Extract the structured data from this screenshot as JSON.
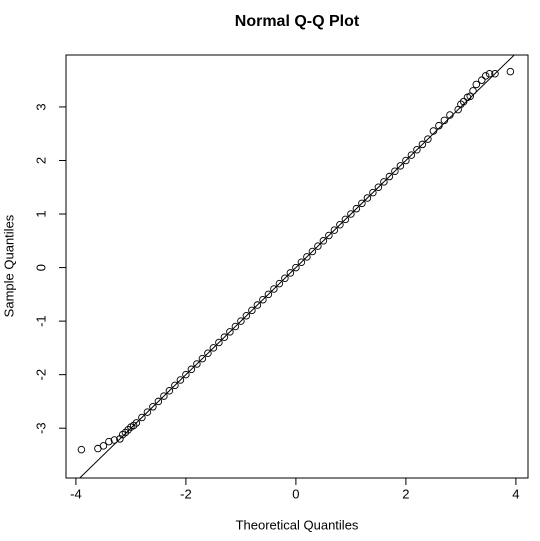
{
  "chart_data": {
    "type": "scatter",
    "title": "Normal Q-Q Plot",
    "x_label": "Theoretical Quantiles",
    "y_label": "Sample Quantiles",
    "x": [
      -3.9,
      -3.6,
      -3.5,
      -3.4,
      -3.3,
      -3.2,
      -3.15,
      -3.1,
      -3.05,
      -3.0,
      -2.95,
      -2.9,
      -2.8,
      -2.7,
      -2.6,
      -2.5,
      -2.4,
      -2.3,
      -2.2,
      -2.1,
      -2.0,
      -1.9,
      -1.8,
      -1.7,
      -1.6,
      -1.5,
      -1.4,
      -1.3,
      -1.2,
      -1.1,
      -1.0,
      -0.9,
      -0.8,
      -0.7,
      -0.6,
      -0.5,
      -0.4,
      -0.3,
      -0.2,
      -0.1,
      0,
      0.1,
      0.2,
      0.3,
      0.4,
      0.5,
      0.6,
      0.7,
      0.8,
      0.9,
      1.0,
      1.1,
      1.2,
      1.3,
      1.4,
      1.5,
      1.6,
      1.7,
      1.8,
      1.9,
      2.0,
      2.1,
      2.2,
      2.3,
      2.4,
      2.5,
      2.6,
      2.7,
      2.8,
      2.95,
      3.0,
      3.05,
      3.12,
      3.17,
      3.22,
      3.28,
      3.38,
      3.45,
      3.52,
      3.62,
      3.9
    ],
    "y": [
      -3.4,
      -3.38,
      -3.33,
      -3.25,
      -3.22,
      -3.2,
      -3.12,
      -3.08,
      -3.03,
      -2.98,
      -2.95,
      -2.9,
      -2.8,
      -2.7,
      -2.6,
      -2.5,
      -2.4,
      -2.3,
      -2.2,
      -2.1,
      -2.0,
      -1.9,
      -1.8,
      -1.7,
      -1.6,
      -1.5,
      -1.4,
      -1.3,
      -1.2,
      -1.1,
      -1.0,
      -0.9,
      -0.8,
      -0.7,
      -0.6,
      -0.5,
      -0.4,
      -0.3,
      -0.2,
      -0.1,
      0,
      0.1,
      0.2,
      0.3,
      0.4,
      0.5,
      0.6,
      0.7,
      0.8,
      0.9,
      1.0,
      1.1,
      1.2,
      1.3,
      1.4,
      1.5,
      1.6,
      1.7,
      1.8,
      1.9,
      2.0,
      2.1,
      2.2,
      2.3,
      2.4,
      2.55,
      2.65,
      2.75,
      2.85,
      2.95,
      3.05,
      3.1,
      3.18,
      3.2,
      3.3,
      3.42,
      3.5,
      3.58,
      3.62,
      3.62,
      3.66
    ],
    "qqline": {
      "intercept": 0,
      "slope": 1
    },
    "color": "#000000",
    "xlim": [
      -4.18,
      4.22
    ],
    "ylim": [
      -3.93,
      3.97
    ],
    "xticks": [
      -4,
      -2,
      0,
      2,
      4
    ],
    "yticks": [
      -3,
      -2,
      -1,
      0,
      1,
      2,
      3
    ]
  }
}
